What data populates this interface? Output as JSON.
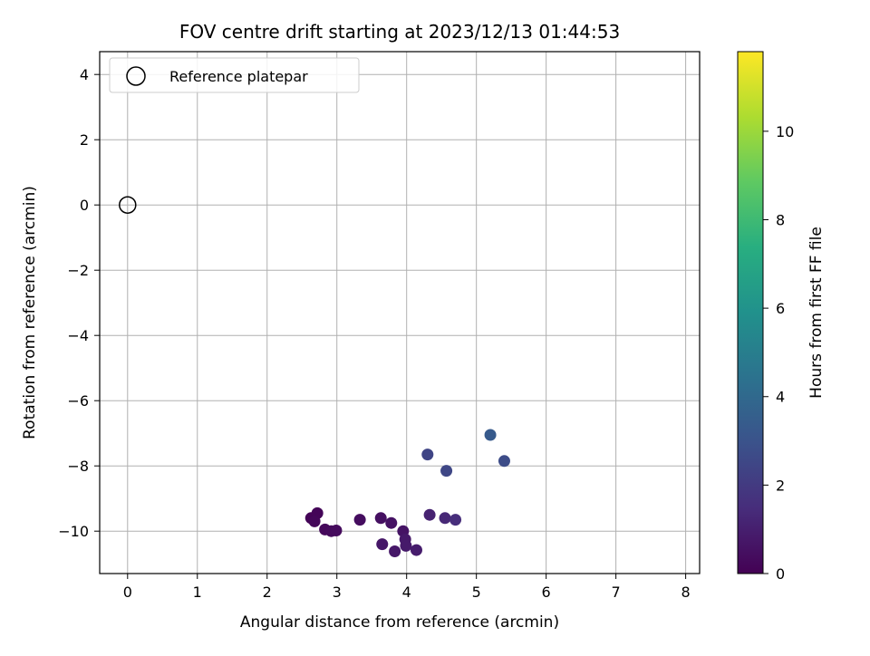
{
  "chart_data": {
    "type": "scatter",
    "title": "FOV centre drift starting at 2023/12/13 01:44:53",
    "xlabel": "Angular distance from reference (arcmin)",
    "ylabel": "Rotation from reference (arcmin)",
    "xlim": [
      -0.4,
      8.2
    ],
    "ylim": [
      -11.3,
      4.7
    ],
    "xticks": [
      "0",
      "1",
      "2",
      "3",
      "4",
      "5",
      "6",
      "7",
      "8"
    ],
    "xtick_values": [
      0,
      1,
      2,
      3,
      4,
      5,
      6,
      7,
      8
    ],
    "yticks": [
      "−10",
      "−8",
      "−6",
      "−4",
      "−2",
      "0",
      "2",
      "4"
    ],
    "ytick_values": [
      -10,
      -8,
      -6,
      -4,
      -2,
      0,
      2,
      4
    ],
    "grid": true,
    "legend": {
      "position": "top-left",
      "entries": [
        "Reference platepar"
      ]
    },
    "reference_point": {
      "x": 0,
      "y": 0,
      "label": "Reference platepar"
    },
    "colorbar": {
      "label": "Hours from first FF file",
      "colormap": "viridis",
      "range": [
        0,
        11.8
      ],
      "ticks": [
        "0",
        "2",
        "4",
        "6",
        "8",
        "10"
      ],
      "tick_values": [
        0,
        2,
        4,
        6,
        8,
        10
      ]
    },
    "series": [
      {
        "points": [
          {
            "x": 2.63,
            "y": -9.6,
            "t": 0.1
          },
          {
            "x": 2.72,
            "y": -9.45,
            "t": 0.15
          },
          {
            "x": 2.68,
            "y": -9.7,
            "t": 0.2
          },
          {
            "x": 2.83,
            "y": -9.95,
            "t": 0.25
          },
          {
            "x": 2.92,
            "y": -10.0,
            "t": 0.3
          },
          {
            "x": 2.99,
            "y": -9.98,
            "t": 0.35
          },
          {
            "x": 3.33,
            "y": -9.65,
            "t": 0.4
          },
          {
            "x": 3.63,
            "y": -9.6,
            "t": 0.5
          },
          {
            "x": 3.78,
            "y": -9.75,
            "t": 0.55
          },
          {
            "x": 3.95,
            "y": -10.0,
            "t": 0.6
          },
          {
            "x": 3.65,
            "y": -10.4,
            "t": 0.7
          },
          {
            "x": 3.83,
            "y": -10.62,
            "t": 0.75
          },
          {
            "x": 3.98,
            "y": -10.25,
            "t": 0.8
          },
          {
            "x": 3.99,
            "y": -10.45,
            "t": 0.85
          },
          {
            "x": 4.14,
            "y": -10.58,
            "t": 0.9
          },
          {
            "x": 4.33,
            "y": -9.5,
            "t": 1.1
          },
          {
            "x": 4.55,
            "y": -9.6,
            "t": 1.3
          },
          {
            "x": 4.7,
            "y": -9.65,
            "t": 1.5
          },
          {
            "x": 4.3,
            "y": -7.65,
            "t": 2.4
          },
          {
            "x": 4.57,
            "y": -8.15,
            "t": 2.5
          },
          {
            "x": 5.4,
            "y": -7.85,
            "t": 2.7
          },
          {
            "x": 5.2,
            "y": -7.05,
            "t": 3.3
          }
        ]
      }
    ]
  }
}
